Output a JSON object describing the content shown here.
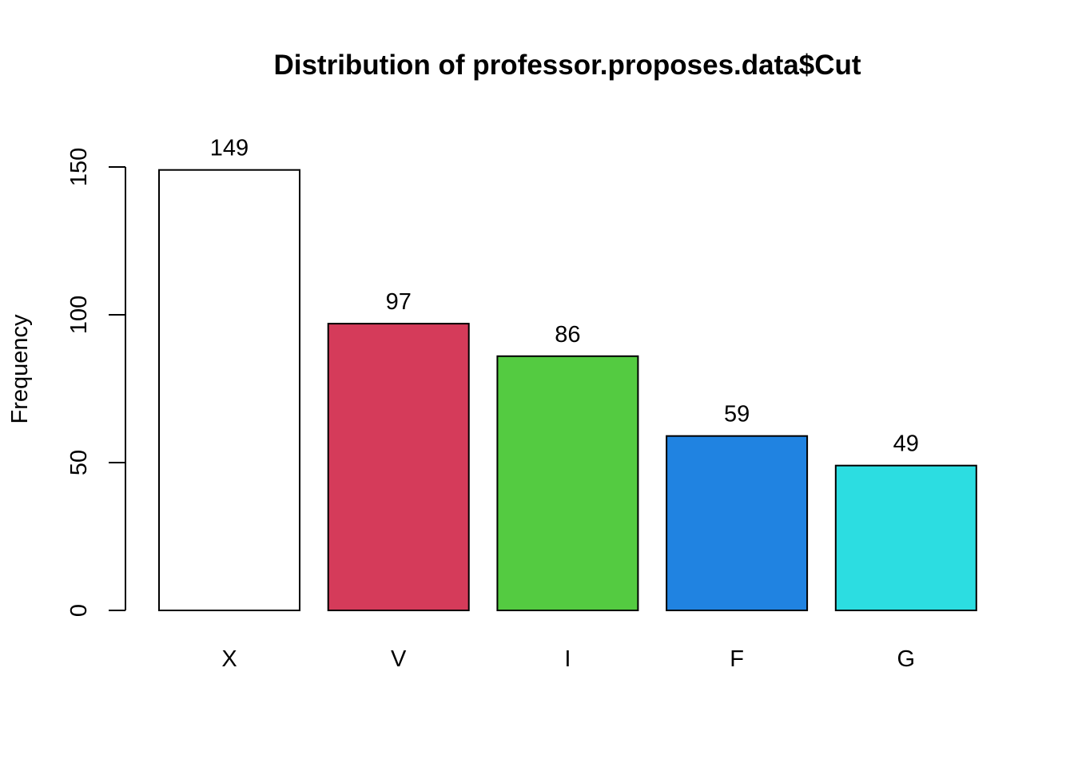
{
  "chart_data": {
    "type": "bar",
    "title": "Distribution of professor.proposes.data$Cut",
    "xlabel": "",
    "ylabel": "Frequency",
    "categories": [
      "X",
      "V",
      "I",
      "F",
      "G"
    ],
    "values": [
      149,
      97,
      86,
      59,
      49
    ],
    "value_labels": [
      "149",
      "97",
      "86",
      "59",
      "49"
    ],
    "colors": [
      "#FFFFFF",
      "#D53B5A",
      "#54CB41",
      "#2083E1",
      "#2CDDE1"
    ],
    "ylim": [
      0,
      150
    ],
    "yticks": [
      0,
      50,
      100,
      150
    ],
    "ytick_labels": [
      "0",
      "50",
      "100",
      "150"
    ],
    "grid": false,
    "legend": "none"
  }
}
